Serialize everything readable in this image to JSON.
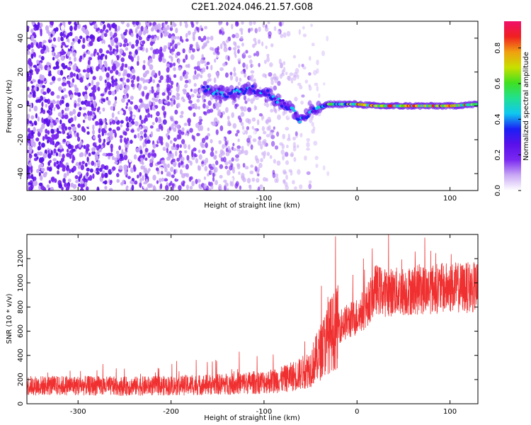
{
  "title": "C2E1.2024.046.21.57.G08",
  "chart_data": [
    {
      "type": "heatmap",
      "xlabel": "Height of straight line (km)",
      "ylabel": "Frequency (Hz)",
      "xlim": [
        -355,
        130
      ],
      "ylim": [
        -50,
        50
      ],
      "xticks": [
        "-300",
        "-200",
        "-100",
        "0",
        "100"
      ],
      "xtick_values": [
        -300,
        -200,
        -100,
        0,
        100
      ],
      "yticks": [
        "-40",
        "-20",
        "0",
        "20",
        "40"
      ],
      "ytick_values": [
        -40,
        -20,
        0,
        20,
        40
      ],
      "colorbar": {
        "label": "Normalized spectral amplitude",
        "range": [
          0,
          0.95
        ],
        "ticks": [
          "0.0",
          "0.2",
          "0.4",
          "0.6",
          "0.8"
        ],
        "tick_values": [
          0,
          0.2,
          0.4,
          0.6,
          0.8
        ],
        "colors": [
          "#ffffff",
          "#c9a8f5",
          "#7a28f0",
          "#5a10ea",
          "#1a20f5",
          "#10c8f0",
          "#20e090",
          "#40e020",
          "#c8e000",
          "#f0a010",
          "#f02020",
          "#f0106a"
        ]
      },
      "signal_track": [
        {
          "x": -165,
          "y": 10
        },
        {
          "x": -140,
          "y": 7
        },
        {
          "x": -115,
          "y": 10
        },
        {
          "x": -100,
          "y": 9
        },
        {
          "x": -85,
          "y": 3
        },
        {
          "x": -70,
          "y": -2
        },
        {
          "x": -62,
          "y": -8
        },
        {
          "x": -50,
          "y": -4
        },
        {
          "x": -40,
          "y": -1
        },
        {
          "x": -30,
          "y": 1
        },
        {
          "x": -10,
          "y": 1
        },
        {
          "x": 0,
          "y": 1
        },
        {
          "x": 20,
          "y": 0
        },
        {
          "x": 60,
          "y": 0
        },
        {
          "x": 100,
          "y": 0
        },
        {
          "x": 130,
          "y": 1
        }
      ],
      "noise_region_x": [
        -355,
        -30
      ]
    },
    {
      "type": "line",
      "xlabel": "Height of straight line (km)",
      "ylabel": "SNR (10 * v/v)",
      "xlim": [
        -355,
        130
      ],
      "ylim": [
        0,
        1400
      ],
      "xticks": [
        "-300",
        "-200",
        "-100",
        "0",
        "100"
      ],
      "xtick_values": [
        -300,
        -200,
        -100,
        0,
        100
      ],
      "yticks": [
        "0",
        "200",
        "400",
        "600",
        "800",
        "1000",
        "1200"
      ],
      "ytick_values": [
        0,
        200,
        400,
        600,
        800,
        1000,
        1200
      ],
      "color": "#f03030",
      "series": [
        {
          "x": [
            -355,
            -300,
            -250,
            -200,
            -150,
            -100,
            -80,
            -60,
            -50,
            -40,
            -30,
            -20,
            -10,
            0,
            10,
            20,
            30,
            50,
            80,
            100,
            130
          ],
          "values": [
            150,
            150,
            145,
            150,
            160,
            180,
            200,
            250,
            300,
            420,
            560,
            640,
            680,
            720,
            800,
            950,
            920,
            930,
            950,
            960,
            960
          ]
        }
      ]
    }
  ]
}
